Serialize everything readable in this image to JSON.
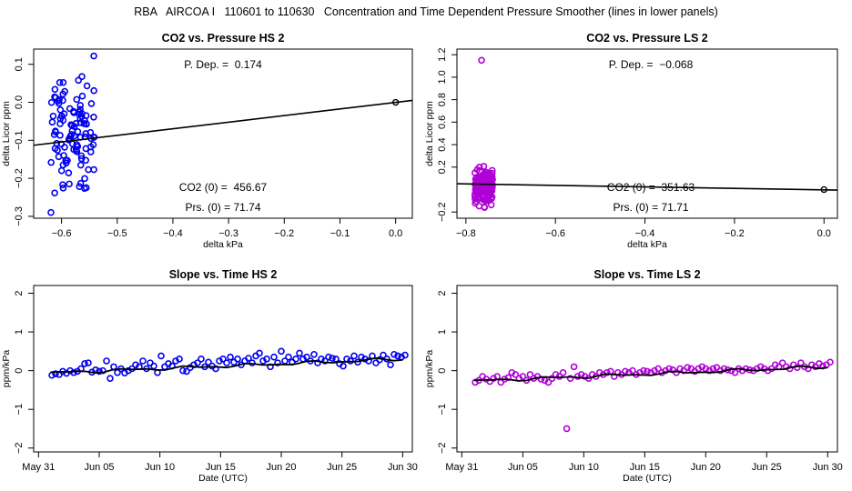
{
  "page_title": "RBA   AIRCOA I   110601 to 110630   Concentration and Time Dependent Pressure Smoother (lines in lower panels)",
  "colors": {
    "hs": "#0000ee",
    "ls": "#b000d8",
    "line": "#000000"
  },
  "chart_data": [
    {
      "id": "p1",
      "type": "scatter",
      "title": "CO2 vs. Pressure HS 2",
      "xlabel": "delta kPa",
      "ylabel": "delta Licor ppm",
      "xlim": [
        -0.65,
        0.03
      ],
      "ylim": [
        -0.305,
        0.14
      ],
      "xticks": [
        -0.6,
        -0.5,
        -0.4,
        -0.3,
        -0.2,
        -0.1,
        0.0
      ],
      "xtick_labels": [
        "−0.6",
        "−0.5",
        "−0.4",
        "−0.3",
        "−0.2",
        "−0.1",
        "0.0"
      ],
      "yticks": [
        -0.3,
        -0.2,
        -0.1,
        0.0,
        0.1
      ],
      "ytick_labels": [
        "−0.3",
        "−0.2",
        "−0.1",
        "0.0",
        "0.1"
      ],
      "annotations": [
        "P. Dep. =  0.174",
        "CO2 (0) =  456.67",
        "Prs. (0) = 71.74"
      ],
      "fit_line": {
        "x": [
          -0.65,
          0.03
        ],
        "y": [
          -0.113,
          0.005
        ]
      },
      "reference_point": {
        "x": 0.0,
        "y": 0.0
      },
      "cluster": {
        "x_min": -0.62,
        "x_max": -0.54,
        "y_min": -0.29,
        "y_max": 0.12,
        "n": 110
      },
      "outliers": [
        {
          "x": -0.542,
          "y": 0.122
        },
        {
          "x": -0.619,
          "y": -0.29
        }
      ],
      "color": "#0000ee"
    },
    {
      "id": "p2",
      "type": "scatter",
      "title": "CO2 vs. Pressure LS 2",
      "xlabel": "delta kPa",
      "ylabel": "delta Licor ppm",
      "xlim": [
        -0.82,
        0.03
      ],
      "ylim": [
        -0.255,
        1.25
      ],
      "xticks": [
        -0.8,
        -0.6,
        -0.4,
        -0.2,
        0.0
      ],
      "xtick_labels": [
        "−0.8",
        "−0.6",
        "−0.4",
        "−0.2",
        "0.0"
      ],
      "yticks": [
        -0.2,
        0.2,
        0.4,
        0.6,
        0.8,
        1.0,
        1.2
      ],
      "ytick_labels": [
        "−0.2",
        "0.2",
        "0.4",
        "0.6",
        "0.8",
        "1.0",
        "1.2"
      ],
      "annotations": [
        "P. Dep. =  −0.068",
        "CO2 (0) =  351.63",
        "Prs. (0) = 71.71"
      ],
      "fit_line": {
        "x": [
          -0.82,
          0.03
        ],
        "y": [
          0.052,
          -0.005
        ]
      },
      "reference_point": {
        "x": 0.0,
        "y": 0.0
      },
      "cluster": {
        "x_min": -0.78,
        "x_max": -0.74,
        "y_min": -0.19,
        "y_max": 0.25,
        "n": 180
      },
      "outliers": [
        {
          "x": -0.765,
          "y": 1.15
        }
      ],
      "color": "#b000d8"
    },
    {
      "id": "p3",
      "type": "scatter",
      "title": "Slope vs. Time HS 2",
      "xlabel": "Date (UTC)",
      "ylabel": "ppm/kPa",
      "xlim": [
        -0.4,
        30.8
      ],
      "ylim": [
        -2.1,
        2.2
      ],
      "xticks": [
        0,
        5,
        10,
        15,
        20,
        25,
        30
      ],
      "xtick_labels": [
        "May 31",
        "Jun 05",
        "Jun 10",
        "Jun 15",
        "Jun 20",
        "Jun 25",
        "Jun 30"
      ],
      "yticks": [
        -2,
        -1,
        0,
        1,
        2
      ],
      "ytick_labels": [
        "−2",
        "−1",
        "0",
        "1",
        "2"
      ],
      "fit_line": {
        "x": [
          1.0,
          30.0
        ],
        "y": [
          -0.06,
          0.3
        ]
      },
      "series": [
        {
          "name": "slope",
          "x": [
            1.1,
            1.4,
            1.7,
            2.0,
            2.3,
            2.6,
            2.9,
            3.2,
            3.5,
            3.8,
            4.1,
            4.4,
            4.7,
            5.0,
            5.3,
            5.6,
            5.9,
            6.2,
            6.5,
            6.8,
            7.1,
            7.4,
            7.7,
            8.0,
            8.3,
            8.6,
            8.9,
            9.2,
            9.5,
            9.8,
            10.1,
            10.4,
            10.7,
            11.0,
            11.3,
            11.6,
            11.9,
            12.2,
            12.5,
            12.8,
            13.1,
            13.4,
            13.7,
            14.0,
            14.3,
            14.6,
            14.9,
            15.2,
            15.5,
            15.8,
            16.1,
            16.4,
            16.7,
            17.0,
            17.3,
            17.6,
            17.9,
            18.2,
            18.5,
            18.8,
            19.1,
            19.4,
            19.7,
            20.0,
            20.3,
            20.6,
            20.9,
            21.2,
            21.5,
            21.8,
            22.1,
            22.4,
            22.7,
            23.0,
            23.3,
            23.6,
            23.9,
            24.2,
            24.5,
            24.8,
            25.1,
            25.4,
            25.7,
            26.0,
            26.3,
            26.6,
            26.9,
            27.2,
            27.5,
            27.8,
            28.1,
            28.4,
            28.7,
            29.0,
            29.3,
            29.6,
            29.9,
            30.2
          ],
          "y": [
            -0.12,
            -0.08,
            -0.1,
            -0.02,
            -0.07,
            0.0,
            -0.05,
            -0.02,
            0.05,
            0.18,
            0.2,
            -0.04,
            0.02,
            -0.02,
            0.0,
            0.25,
            -0.2,
            0.1,
            -0.05,
            0.05,
            -0.06,
            0.0,
            0.05,
            0.15,
            0.1,
            0.25,
            0.05,
            0.2,
            0.12,
            -0.05,
            0.38,
            0.1,
            0.18,
            0.12,
            0.25,
            0.3,
            0.0,
            -0.02,
            0.08,
            0.15,
            0.2,
            0.3,
            0.1,
            0.22,
            0.12,
            0.05,
            0.25,
            0.3,
            0.2,
            0.35,
            0.22,
            0.3,
            0.15,
            0.25,
            0.32,
            0.2,
            0.38,
            0.45,
            0.25,
            0.3,
            0.1,
            0.35,
            0.2,
            0.5,
            0.25,
            0.35,
            0.22,
            0.3,
            0.45,
            0.3,
            0.35,
            0.25,
            0.42,
            0.2,
            0.3,
            0.25,
            0.35,
            0.32,
            0.3,
            0.18,
            0.12,
            0.3,
            0.25,
            0.38,
            0.22,
            0.35,
            0.3,
            0.25,
            0.38,
            0.2,
            0.28,
            0.4,
            0.3,
            0.15,
            0.42,
            0.38,
            0.35,
            0.4
          ]
        }
      ],
      "color": "#0000ee"
    },
    {
      "id": "p4",
      "type": "scatter",
      "title": "Slope vs. Time LS 2",
      "xlabel": "Date (UTC)",
      "ylabel": "ppm/kPa",
      "xlim": [
        -0.4,
        30.8
      ],
      "ylim": [
        -2.1,
        2.2
      ],
      "xticks": [
        0,
        5,
        10,
        15,
        20,
        25,
        30
      ],
      "xtick_labels": [
        "May 31",
        "Jun 05",
        "Jun 10",
        "Jun 15",
        "Jun 20",
        "Jun 25",
        "Jun 30"
      ],
      "yticks": [
        -2,
        -1,
        0,
        1,
        2
      ],
      "ytick_labels": [
        "−2",
        "−1",
        "0",
        "1",
        "2"
      ],
      "fit_line": {
        "x": [
          1.0,
          30.0
        ],
        "y": [
          -0.27,
          0.1
        ]
      },
      "series": [
        {
          "name": "slope",
          "x": [
            1.1,
            1.4,
            1.7,
            2.0,
            2.3,
            2.6,
            2.9,
            3.2,
            3.5,
            3.8,
            4.1,
            4.4,
            4.7,
            5.0,
            5.3,
            5.6,
            5.9,
            6.2,
            6.5,
            6.8,
            7.1,
            7.4,
            7.7,
            8.0,
            8.3,
            8.6,
            8.9,
            9.2,
            9.5,
            9.8,
            10.1,
            10.4,
            10.7,
            11.0,
            11.3,
            11.6,
            11.9,
            12.2,
            12.5,
            12.8,
            13.1,
            13.4,
            13.7,
            14.0,
            14.3,
            14.6,
            14.9,
            15.2,
            15.5,
            15.8,
            16.1,
            16.4,
            16.7,
            17.0,
            17.3,
            17.6,
            17.9,
            18.2,
            18.5,
            18.8,
            19.1,
            19.4,
            19.7,
            20.0,
            20.3,
            20.6,
            20.9,
            21.2,
            21.5,
            21.8,
            22.1,
            22.4,
            22.7,
            23.0,
            23.3,
            23.6,
            23.9,
            24.2,
            24.5,
            24.8,
            25.1,
            25.4,
            25.7,
            26.0,
            26.3,
            26.6,
            26.9,
            27.2,
            27.5,
            27.8,
            28.1,
            28.4,
            28.7,
            29.0,
            29.3,
            29.6,
            29.9,
            30.2
          ],
          "y": [
            -0.3,
            -0.25,
            -0.15,
            -0.22,
            -0.28,
            -0.2,
            -0.15,
            -0.3,
            -0.22,
            -0.18,
            -0.05,
            -0.1,
            -0.2,
            -0.15,
            -0.25,
            -0.1,
            -0.2,
            -0.15,
            -0.22,
            -0.25,
            -0.3,
            -0.2,
            -0.1,
            -0.15,
            -0.05,
            -1.5,
            -0.2,
            0.1,
            -0.15,
            -0.1,
            -0.15,
            -0.2,
            -0.1,
            -0.15,
            -0.05,
            -0.1,
            -0.05,
            -0.02,
            -0.15,
            -0.05,
            -0.1,
            -0.02,
            -0.05,
            0.0,
            -0.1,
            -0.05,
            0.0,
            -0.02,
            -0.05,
            0.0,
            0.05,
            -0.05,
            0.0,
            0.05,
            0.02,
            -0.05,
            0.05,
            0.0,
            0.08,
            0.05,
            -0.02,
            0.05,
            0.1,
            0.05,
            0.0,
            0.05,
            0.08,
            0.0,
            0.05,
            0.02,
            0.0,
            -0.05,
            0.05,
            0.0,
            0.05,
            0.02,
            0.0,
            0.05,
            0.1,
            0.05,
            0.0,
            0.05,
            0.15,
            0.1,
            0.2,
            0.1,
            0.05,
            0.15,
            0.08,
            0.2,
            0.1,
            0.05,
            0.15,
            0.1,
            0.18,
            0.12,
            0.15,
            0.22
          ]
        }
      ],
      "color": "#b000d8"
    }
  ]
}
